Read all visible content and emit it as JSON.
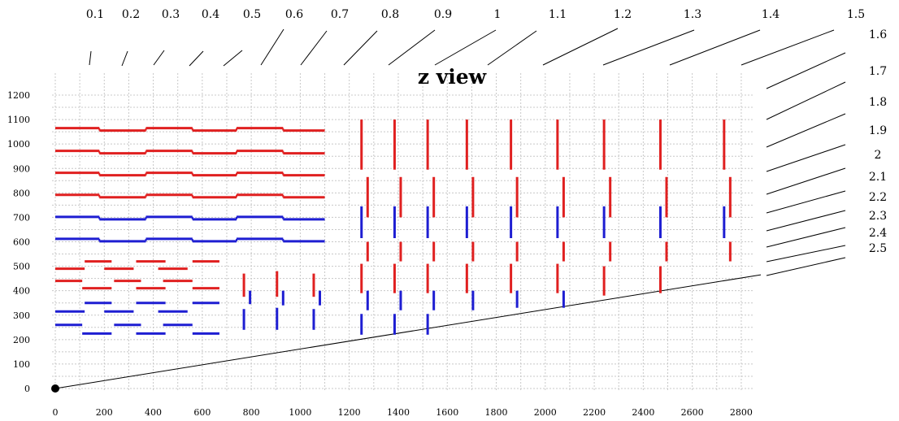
{
  "chart_data": {
    "type": "scatter",
    "title": "z view",
    "xlim": [
      0,
      2850
    ],
    "ylim": [
      -10,
      1230
    ],
    "x_ticks": [
      0,
      200,
      400,
      600,
      800,
      1000,
      1200,
      1400,
      1600,
      1800,
      2000,
      2200,
      2400,
      2600,
      2800
    ],
    "y_ticks": [
      0,
      100,
      200,
      300,
      400,
      500,
      600,
      700,
      800,
      900,
      1000,
      1100,
      1200
    ],
    "grid": true,
    "colors": {
      "outer": "#e02020",
      "inner": "#1e1ed2",
      "ray": "#000000"
    },
    "origin": [
      0,
      0
    ],
    "ray_line": {
      "x": [
        0,
        2880
      ],
      "y": [
        0,
        465
      ]
    },
    "eta_labels": [
      "0.1",
      "0.2",
      "0.3",
      "0.4",
      "0.5",
      "0.6",
      "0.7",
      "0.8",
      "0.9",
      "1",
      "1.1",
      "1.2",
      "1.3",
      "1.4",
      "1.5",
      "1.6",
      "1.7",
      "1.8",
      "1.9",
      "2",
      "2.1",
      "2.2",
      "2.3",
      "2.4",
      "2.5"
    ],
    "layers": [
      {
        "r": 1060,
        "color": "outer",
        "segments": [
          [
            0,
            180
          ],
          [
            180,
            370
          ],
          [
            370,
            560
          ],
          [
            560,
            740
          ],
          [
            740,
            930
          ],
          [
            930,
            1100
          ]
        ],
        "steps": [
          5,
          -5
        ]
      },
      {
        "r": 967,
        "color": "outer",
        "segments": [
          [
            0,
            180
          ],
          [
            180,
            370
          ],
          [
            370,
            560
          ],
          [
            560,
            740
          ],
          [
            740,
            930
          ],
          [
            930,
            1100
          ]
        ],
        "steps": [
          5,
          -5
        ]
      },
      {
        "r": 877,
        "color": "outer",
        "segments": [
          [
            0,
            180
          ],
          [
            180,
            370
          ],
          [
            370,
            560
          ],
          [
            560,
            740
          ],
          [
            740,
            930
          ],
          [
            930,
            1100
          ]
        ],
        "steps": [
          5,
          -5
        ]
      },
      {
        "r": 787,
        "color": "outer",
        "segments": [
          [
            0,
            180
          ],
          [
            180,
            370
          ],
          [
            370,
            560
          ],
          [
            560,
            740
          ],
          [
            740,
            930
          ],
          [
            930,
            1100
          ]
        ],
        "steps": [
          5,
          -5
        ]
      },
      {
        "r": 697,
        "color": "inner",
        "segments": [
          [
            0,
            180
          ],
          [
            180,
            370
          ],
          [
            370,
            560
          ],
          [
            560,
            740
          ],
          [
            740,
            930
          ],
          [
            930,
            1100
          ]
        ],
        "steps": [
          5,
          -5
        ]
      },
      {
        "r": 607,
        "color": "inner",
        "segments": [
          [
            0,
            180
          ],
          [
            180,
            370
          ],
          [
            370,
            560
          ],
          [
            560,
            740
          ],
          [
            740,
            930
          ],
          [
            930,
            1100
          ]
        ],
        "steps": [
          5,
          -5
        ]
      }
    ],
    "barrel_pieces": [
      {
        "color": "outer",
        "r": 520,
        "x": [
          [
            120,
            230
          ],
          [
            330,
            450
          ],
          [
            560,
            670
          ]
        ]
      },
      {
        "color": "outer",
        "r": 490,
        "x": [
          [
            0,
            120
          ],
          [
            200,
            320
          ],
          [
            420,
            540
          ]
        ]
      },
      {
        "color": "outer",
        "r": 440,
        "x": [
          [
            0,
            110
          ],
          [
            240,
            350
          ],
          [
            440,
            560
          ]
        ]
      },
      {
        "color": "outer",
        "r": 410,
        "x": [
          [
            110,
            230
          ],
          [
            330,
            450
          ],
          [
            560,
            670
          ]
        ]
      },
      {
        "color": "inner",
        "r": 350,
        "x": [
          [
            120,
            230
          ],
          [
            330,
            450
          ],
          [
            560,
            670
          ]
        ]
      },
      {
        "color": "inner",
        "r": 315,
        "x": [
          [
            0,
            120
          ],
          [
            200,
            320
          ],
          [
            420,
            540
          ]
        ]
      },
      {
        "color": "inner",
        "r": 260,
        "x": [
          [
            0,
            110
          ],
          [
            240,
            350
          ],
          [
            440,
            560
          ]
        ]
      },
      {
        "color": "inner",
        "r": 225,
        "x": [
          [
            110,
            230
          ],
          [
            330,
            450
          ],
          [
            560,
            670
          ]
        ]
      }
    ],
    "inner_disks": [
      {
        "color": "outer",
        "z": 770,
        "r": [
          375,
          470
        ]
      },
      {
        "color": "inner",
        "z": 795,
        "r": [
          345,
          400
        ]
      },
      {
        "color": "inner",
        "z": 770,
        "r": [
          240,
          325
        ]
      },
      {
        "color": "outer",
        "z": 905,
        "r": [
          375,
          480
        ]
      },
      {
        "color": "inner",
        "z": 930,
        "r": [
          340,
          400
        ]
      },
      {
        "color": "inner",
        "z": 905,
        "r": [
          240,
          330
        ]
      },
      {
        "color": "outer",
        "z": 1055,
        "r": [
          375,
          470
        ]
      },
      {
        "color": "inner",
        "z": 1080,
        "r": [
          340,
          400
        ]
      },
      {
        "color": "inner",
        "z": 1055,
        "r": [
          240,
          325
        ]
      }
    ],
    "outer_disks": [
      {
        "z": 1250,
        "pieces": [
          [
            "outer",
            895,
            1100
          ],
          [
            "outer",
            700,
            865
          ],
          [
            "inner",
            615,
            745
          ],
          [
            "outer",
            520,
            600
          ],
          [
            "outer",
            390,
            510
          ],
          [
            "inner",
            320,
            400
          ],
          [
            "inner",
            220,
            305
          ]
        ]
      },
      {
        "z": 1385,
        "pieces": [
          [
            "outer",
            895,
            1100
          ],
          [
            "outer",
            700,
            865
          ],
          [
            "inner",
            615,
            745
          ],
          [
            "outer",
            520,
            600
          ],
          [
            "outer",
            390,
            510
          ],
          [
            "inner",
            320,
            400
          ],
          [
            "inner",
            220,
            305
          ]
        ]
      },
      {
        "z": 1520,
        "pieces": [
          [
            "outer",
            895,
            1100
          ],
          [
            "outer",
            700,
            865
          ],
          [
            "inner",
            615,
            745
          ],
          [
            "outer",
            520,
            600
          ],
          [
            "outer",
            390,
            510
          ],
          [
            "inner",
            320,
            400
          ],
          [
            "inner",
            220,
            305
          ]
        ]
      },
      {
        "z": 1680,
        "pieces": [
          [
            "outer",
            895,
            1100
          ],
          [
            "outer",
            700,
            865
          ],
          [
            "inner",
            615,
            745
          ],
          [
            "outer",
            520,
            600
          ],
          [
            "outer",
            390,
            510
          ],
          [
            "inner",
            320,
            400
          ]
        ]
      },
      {
        "z": 1860,
        "pieces": [
          [
            "outer",
            895,
            1100
          ],
          [
            "outer",
            700,
            865
          ],
          [
            "inner",
            615,
            745
          ],
          [
            "outer",
            520,
            600
          ],
          [
            "outer",
            390,
            510
          ],
          [
            "inner",
            330,
            400
          ]
        ]
      },
      {
        "z": 2050,
        "pieces": [
          [
            "outer",
            895,
            1100
          ],
          [
            "outer",
            700,
            865
          ],
          [
            "inner",
            615,
            745
          ],
          [
            "outer",
            520,
            600
          ],
          [
            "outer",
            390,
            510
          ],
          [
            "inner",
            330,
            400
          ]
        ]
      },
      {
        "z": 2240,
        "pieces": [
          [
            "outer",
            895,
            1100
          ],
          [
            "outer",
            700,
            865
          ],
          [
            "inner",
            615,
            745
          ],
          [
            "outer",
            520,
            600
          ],
          [
            "outer",
            380,
            500
          ]
        ]
      },
      {
        "z": 2470,
        "pieces": [
          [
            "outer",
            895,
            1100
          ],
          [
            "outer",
            700,
            865
          ],
          [
            "inner",
            615,
            745
          ],
          [
            "outer",
            520,
            600
          ],
          [
            "outer",
            390,
            500
          ]
        ]
      },
      {
        "z": 2730,
        "pieces": [
          [
            "outer",
            895,
            1100
          ],
          [
            "outer",
            700,
            865
          ],
          [
            "inner",
            615,
            745
          ],
          [
            "outer",
            520,
            600
          ]
        ]
      }
    ]
  }
}
